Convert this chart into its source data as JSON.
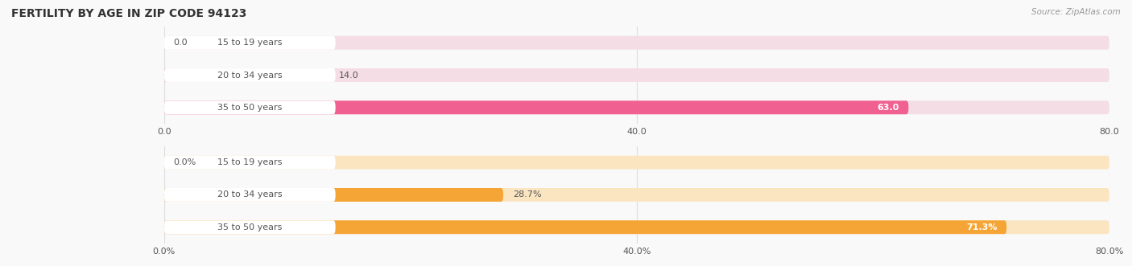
{
  "title": "FERTILITY BY AGE IN ZIP CODE 94123",
  "source": "Source: ZipAtlas.com",
  "chart1": {
    "categories": [
      "15 to 19 years",
      "20 to 34 years",
      "35 to 50 years"
    ],
    "values": [
      0.0,
      14.0,
      63.0
    ],
    "xlim": [
      0,
      80
    ],
    "xticks": [
      0.0,
      40.0,
      80.0
    ],
    "xtick_labels": [
      "0.0",
      "40.0",
      "80.0"
    ],
    "bar_color": "#f06090",
    "bar_bg_color": "#f5dde5",
    "label_bg_color": "#ffffff",
    "bar_height": 0.42,
    "value_labels": [
      "0.0",
      "14.0",
      "63.0"
    ],
    "label_inside_threshold": 55
  },
  "chart2": {
    "categories": [
      "15 to 19 years",
      "20 to 34 years",
      "35 to 50 years"
    ],
    "values": [
      0.0,
      28.7,
      71.3
    ],
    "xlim": [
      0,
      80
    ],
    "xticks": [
      0.0,
      40.0,
      80.0
    ],
    "xtick_labels": [
      "0.0%",
      "40.0%",
      "80.0%"
    ],
    "bar_color": "#f5a535",
    "bar_bg_color": "#fae5c0",
    "label_bg_color": "#ffffff",
    "bar_height": 0.42,
    "value_labels": [
      "0.0%",
      "28.7%",
      "71.3%"
    ],
    "label_inside_threshold": 55
  },
  "label_color": "#555555",
  "value_color_inside": "#ffffff",
  "value_color_outside": "#555555",
  "bg_color": "#f9f9f9",
  "grid_color": "#dddddd",
  "title_color": "#333333",
  "source_color": "#999999",
  "title_fontsize": 10,
  "source_fontsize": 7.5,
  "label_fontsize": 8,
  "value_fontsize": 8,
  "tick_fontsize": 8
}
